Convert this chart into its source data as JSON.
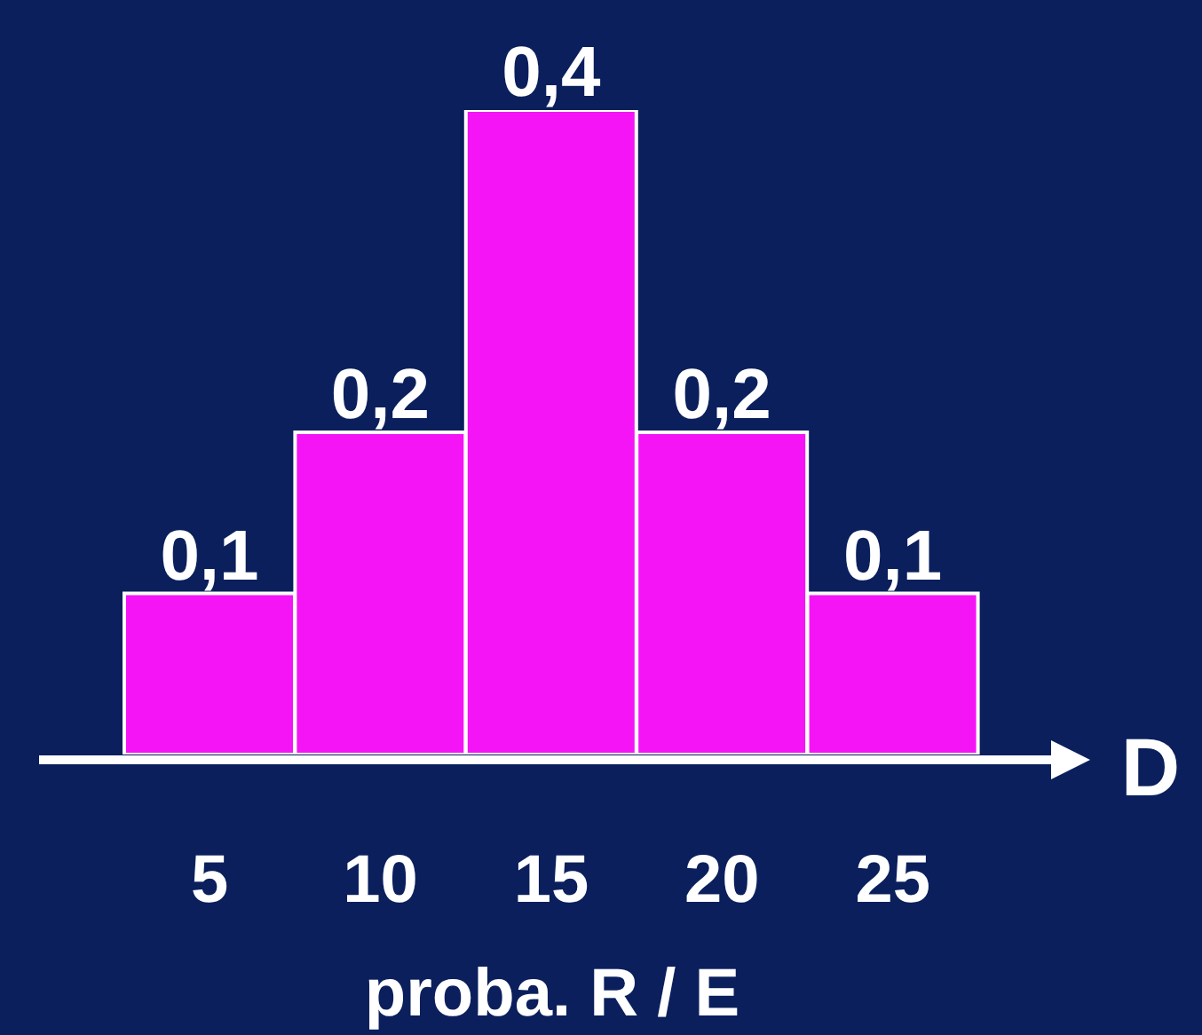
{
  "chart_data": {
    "type": "bar",
    "xlabel": "D",
    "annotations": [
      "proba. R / E"
    ],
    "categories": [
      "5",
      "10",
      "15",
      "20",
      "25"
    ],
    "values": [
      0.1,
      0.2,
      0.4,
      0.2,
      0.1
    ],
    "value_labels": [
      "0,1",
      "0,2",
      "0,4",
      "0,2",
      "0,1"
    ],
    "color": "#f514f5",
    "ylim": [
      0,
      0.4
    ],
    "grid": false,
    "legend": false
  }
}
